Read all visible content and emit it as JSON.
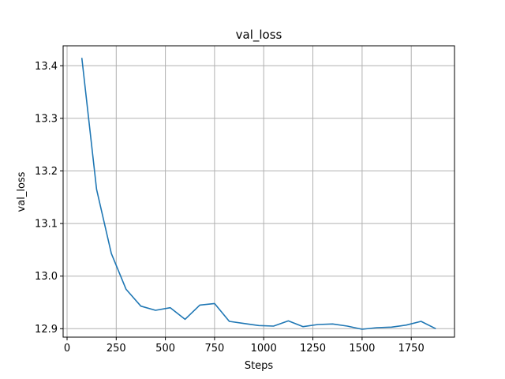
{
  "chart_data": {
    "type": "line",
    "title": "val_loss",
    "xlabel": "Steps",
    "ylabel": "val_loss",
    "xlim": [
      -20,
      1970
    ],
    "ylim": [
      12.884,
      13.438
    ],
    "xticks": [
      0,
      250,
      500,
      750,
      1000,
      1250,
      1500,
      1750
    ],
    "xtick_labels": [
      "0",
      "250",
      "500",
      "750",
      "1000",
      "1250",
      "1500",
      "1750"
    ],
    "yticks": [
      12.9,
      13.0,
      13.1,
      13.2,
      13.3,
      13.4
    ],
    "ytick_labels": [
      "12.9",
      "13.0",
      "13.1",
      "13.2",
      "13.3",
      "13.4"
    ],
    "grid": true,
    "series": [
      {
        "color": "#1f77b4",
        "x": [
          75,
          150,
          225,
          300,
          375,
          450,
          525,
          600,
          675,
          750,
          825,
          900,
          975,
          1050,
          1125,
          1200,
          1275,
          1350,
          1425,
          1500,
          1575,
          1650,
          1725,
          1800,
          1875
        ],
        "y": [
          13.415,
          13.165,
          13.043,
          12.975,
          12.943,
          12.935,
          12.94,
          12.918,
          12.945,
          12.948,
          12.914,
          12.91,
          12.906,
          12.905,
          12.915,
          12.904,
          12.908,
          12.909,
          12.905,
          12.899,
          12.902,
          12.903,
          12.907,
          12.914,
          12.9
        ]
      }
    ]
  }
}
